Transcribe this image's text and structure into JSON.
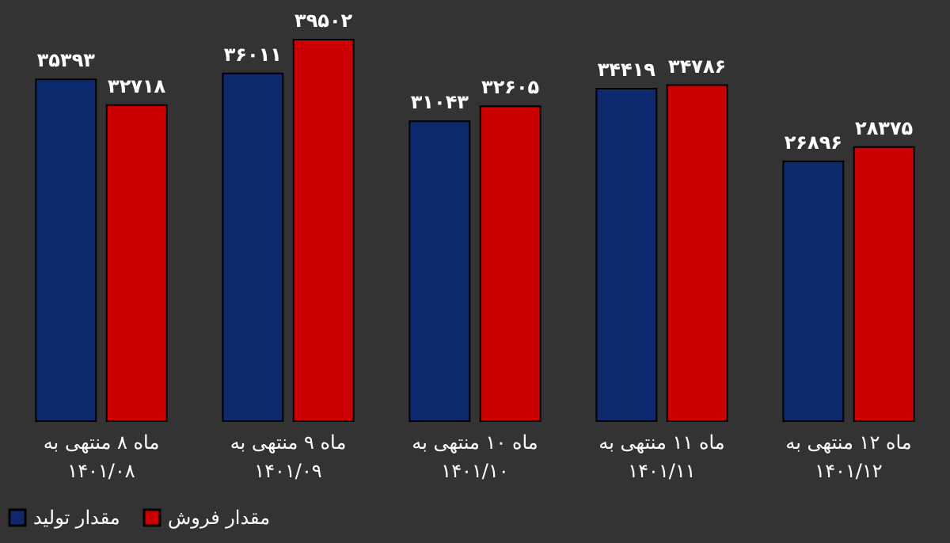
{
  "chart_data": {
    "type": "bar",
    "categories": [
      "ماه ۸ منتهی به\n۱۴۰۱/۰۸",
      "ماه ۹ منتهی به\n۱۴۰۱/۰۹",
      "ماه ۱۰ منتهی به\n۱۴۰۱/۱۰",
      "ماه ۱۱ منتهی به\n۱۴۰۱/۱۱",
      "ماه ۱۲ منتهی به\n۱۴۰۱/۱۲"
    ],
    "series": [
      {
        "name": "مقدار تولید",
        "color": "#0d2a6e",
        "values": [
          35393,
          36011,
          31043,
          34419,
          26896
        ],
        "value_labels": [
          "۳۵۳۹۳",
          "۳۶۰۱۱",
          "۳۱۰۴۳",
          "۳۴۴۱۹",
          "۲۶۸۹۶"
        ]
      },
      {
        "name": "مقدار فروش",
        "color": "#cc0000",
        "values": [
          32718,
          39502,
          32605,
          34786,
          28375
        ],
        "value_labels": [
          "۳۲۷۱۸",
          "۳۹۵۰۲",
          "۳۲۶۰۵",
          "۳۴۷۸۶",
          "۲۸۳۷۵"
        ]
      }
    ],
    "tick_labels": "x",
    "legend": "bottom",
    "grid": false
  }
}
